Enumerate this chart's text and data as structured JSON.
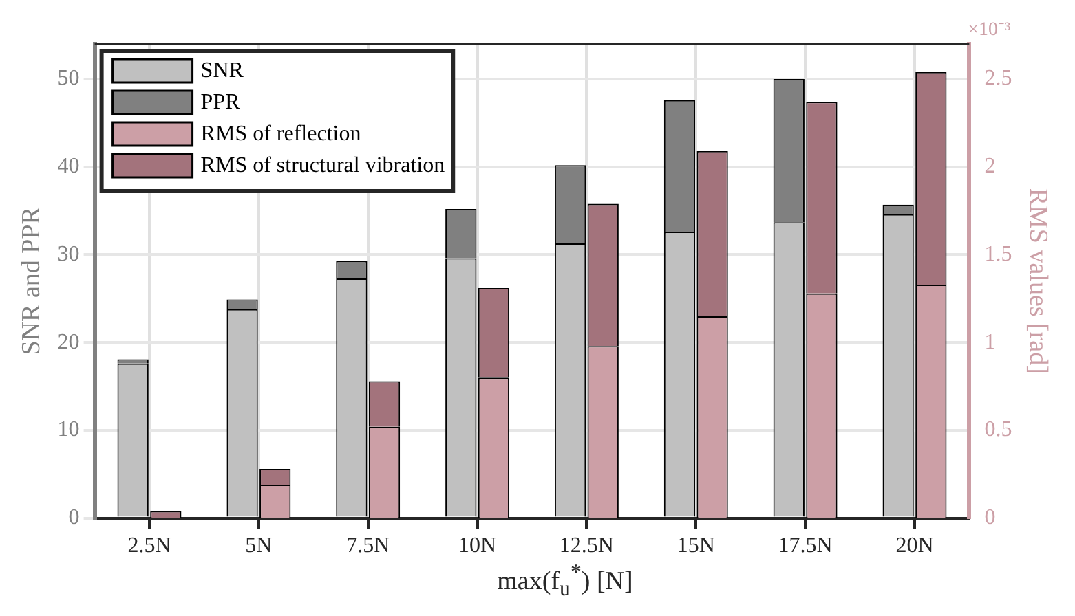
{
  "chart_data": {
    "type": "bar",
    "xlabel": "max(f$_{u}$$^{*}$) [N]",
    "ylabel": "SNR and PPR",
    "y2label": "RMS values [rad]",
    "categories": [
      "2.5N",
      "5N",
      "7.5N",
      "10N",
      "12.5N",
      "15N",
      "17.5N",
      "20N"
    ],
    "stacked": true,
    "series": [
      {
        "name": "SNR",
        "color": "#c0c0c0",
        "values": [
          17.6,
          23.8,
          27.3,
          29.6,
          31.3,
          32.6,
          33.7,
          34.6
        ]
      },
      {
        "name": "PPR",
        "color": "#808080",
        "values": [
          0.5,
          1.1,
          2.0,
          5.6,
          8.9,
          15.0,
          16.3,
          1.1
        ]
      },
      {
        "name": "RMS of reflection",
        "color": "#cc9fa6",
        "axis": "y2",
        "values": [
          null,
          0.19,
          0.52,
          0.8,
          0.98,
          1.15,
          1.28,
          1.33
        ]
      },
      {
        "name": "RMS of structural vibration",
        "color": "#a3737c",
        "axis": "y2",
        "values": [
          0.04,
          0.09,
          0.26,
          0.51,
          0.81,
          0.94,
          1.09,
          1.21
        ]
      }
    ],
    "ylim": [
      0,
      54
    ],
    "yticks": [
      0,
      10,
      20,
      30,
      40,
      50
    ],
    "y2lim": [
      0,
      2.7
    ],
    "y2ticks": [
      0,
      0.5,
      1,
      1.5,
      2,
      2.5
    ],
    "annotations": [
      "×10⁻³"
    ],
    "grid": true,
    "legend": "top left"
  }
}
